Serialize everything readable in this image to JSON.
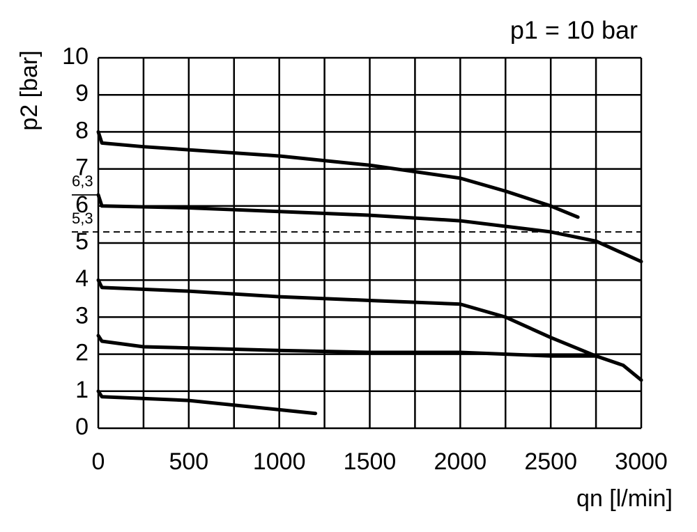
{
  "chart_data": {
    "type": "line",
    "title": "p1 = 10 bar",
    "x_label": "qn [l/min]",
    "y_label": "p2 [bar]",
    "xlim": [
      0,
      3000
    ],
    "xticks": [
      0,
      500,
      1000,
      1500,
      2000,
      2500,
      3000
    ],
    "xminorticks": [
      250,
      750,
      1250,
      1750,
      2250,
      2750
    ],
    "ylim": [
      0,
      10
    ],
    "yticks": [
      0,
      1,
      2,
      3,
      4,
      5,
      6,
      7,
      8,
      9,
      10
    ],
    "grid": true,
    "reference_lines": [
      {
        "value": 6.3,
        "label": "6,3",
        "style": "solid"
      },
      {
        "value": 5.3,
        "label": "5,3",
        "style": "dashed"
      }
    ],
    "series": [
      {
        "color": "#000000",
        "x": [
          0,
          20,
          250,
          1000,
          1500,
          2000,
          2250,
          2500,
          2650
        ],
        "values": [
          8.0,
          7.7,
          7.6,
          7.35,
          7.1,
          6.75,
          6.4,
          6.0,
          5.7
        ]
      },
      {
        "color": "#000000",
        "x": [
          0,
          20,
          500,
          1000,
          1500,
          2000,
          2500,
          2750,
          3000
        ],
        "values": [
          6.3,
          6.0,
          5.95,
          5.85,
          5.75,
          5.6,
          5.3,
          5.05,
          4.5
        ]
      },
      {
        "color": "#000000",
        "x": [
          0,
          20,
          500,
          1000,
          1500,
          2000,
          2250,
          2500,
          2750
        ],
        "values": [
          4.0,
          3.8,
          3.7,
          3.55,
          3.45,
          3.35,
          3.0,
          2.45,
          1.95
        ]
      },
      {
        "color": "#000000",
        "x": [
          0,
          20,
          250,
          1000,
          1500,
          2000,
          2500,
          2750,
          2900,
          3000
        ],
        "values": [
          2.5,
          2.35,
          2.2,
          2.1,
          2.05,
          2.05,
          1.95,
          1.95,
          1.7,
          1.3
        ]
      },
      {
        "color": "#000000",
        "x": [
          0,
          20,
          500,
          1000,
          1200
        ],
        "values": [
          1.0,
          0.85,
          0.75,
          0.5,
          0.4
        ]
      }
    ]
  }
}
